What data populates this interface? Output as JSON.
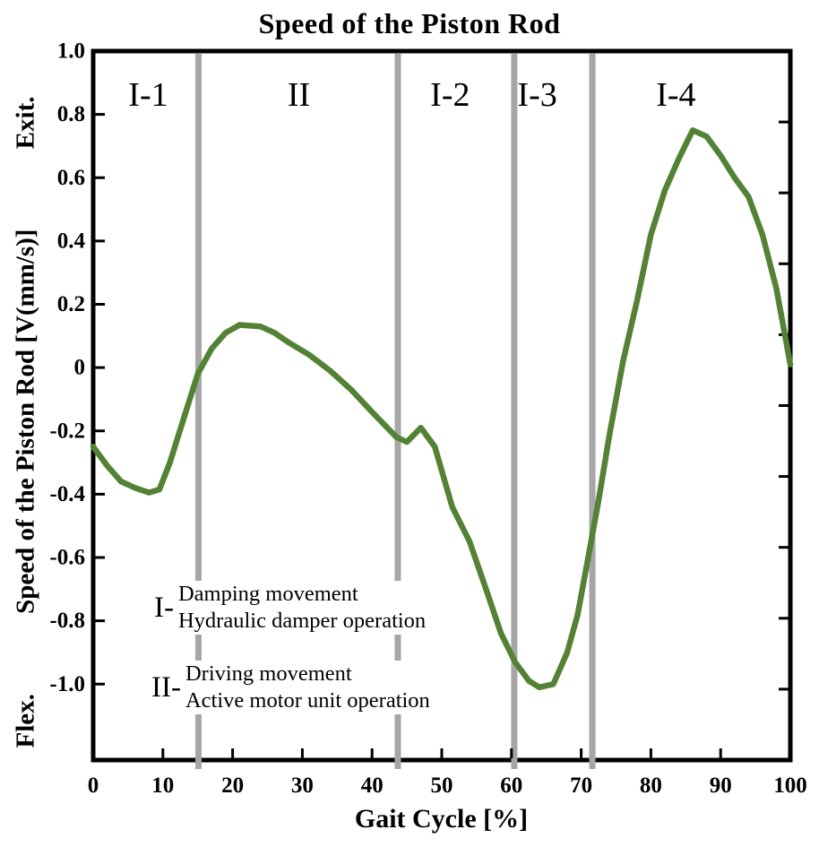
{
  "title": "Speed of the Piston Rod",
  "y_axis": {
    "label_top": "Exit.",
    "label_main": "Speed of the Piston Rod [V(mm/s)]",
    "label_bottom": "Flex."
  },
  "x_axis": {
    "label": "Gait Cycle [%]"
  },
  "legend": {
    "item1": {
      "prefix": "I-",
      "line1": "Damping movement",
      "line2": "Hydraulic damper operation"
    },
    "item2": {
      "prefix": "II-",
      "line1": "Driving movement",
      "line2": "Active motor unit operation"
    }
  },
  "colors": {
    "curve": "#548235",
    "divider": "#a6a6a6",
    "axis": "#000000",
    "background": "#ffffff"
  },
  "chart_data": {
    "type": "line",
    "title": "Speed of the Piston Rod",
    "xlabel": "Gait Cycle [%]",
    "ylabel": "Speed of the Piston Rod [V(mm/s)]",
    "xlim": [
      0,
      100
    ],
    "ylim": [
      -1.24,
      1.0
    ],
    "grid": false,
    "legend_position": "lower-left",
    "x_ticks": [
      0,
      10,
      20,
      30,
      40,
      50,
      60,
      70,
      80,
      90,
      100
    ],
    "y_tick_values": [
      1.0,
      0.8,
      0.6,
      0.4,
      0.2,
      0,
      -0.2,
      -0.4,
      -0.6,
      -0.8,
      -1.0
    ],
    "y_tick_labels": [
      "1.0",
      "0.8",
      "0.6",
      "0.4",
      "0.2",
      "0",
      "-0.2",
      "-0.4",
      "-0.6",
      "-0.8",
      "-1.0"
    ],
    "right_axis_tick_count": 11,
    "region_dividers_x": [
      15.1,
      43.7,
      60.4,
      71.6
    ],
    "regions": [
      {
        "label": "I-1",
        "x": 7.9
      },
      {
        "label": "II",
        "x": 29.5
      },
      {
        "label": "I-2",
        "x": 51.2
      },
      {
        "label": "I-3",
        "x": 63.7
      },
      {
        "label": "I-4",
        "x": 83.6
      }
    ],
    "series": [
      {
        "name": "Speed of the piston rod",
        "x": [
          0,
          2,
          4,
          6,
          8,
          9.5,
          11,
          13,
          15,
          17,
          19,
          21,
          24,
          26,
          28,
          31,
          34,
          37,
          40,
          43.5,
          45,
          47,
          49,
          51.5,
          54,
          56.5,
          58.5,
          60.5,
          62.5,
          64,
          66,
          68,
          69.5,
          71,
          72.5,
          74,
          76,
          78,
          80,
          82,
          84,
          86,
          88,
          90,
          92,
          94,
          96,
          98,
          100
        ],
        "y": [
          -0.25,
          -0.31,
          -0.36,
          -0.38,
          -0.395,
          -0.385,
          -0.3,
          -0.16,
          -0.02,
          0.06,
          0.11,
          0.135,
          0.13,
          0.11,
          0.08,
          0.04,
          -0.01,
          -0.07,
          -0.14,
          -0.22,
          -0.235,
          -0.19,
          -0.25,
          -0.44,
          -0.55,
          -0.71,
          -0.84,
          -0.93,
          -0.99,
          -1.01,
          -1.0,
          -0.9,
          -0.78,
          -0.6,
          -0.42,
          -0.22,
          0.02,
          0.21,
          0.42,
          0.56,
          0.66,
          0.75,
          0.73,
          0.67,
          0.6,
          0.54,
          0.42,
          0.25,
          0.01
        ]
      }
    ]
  }
}
